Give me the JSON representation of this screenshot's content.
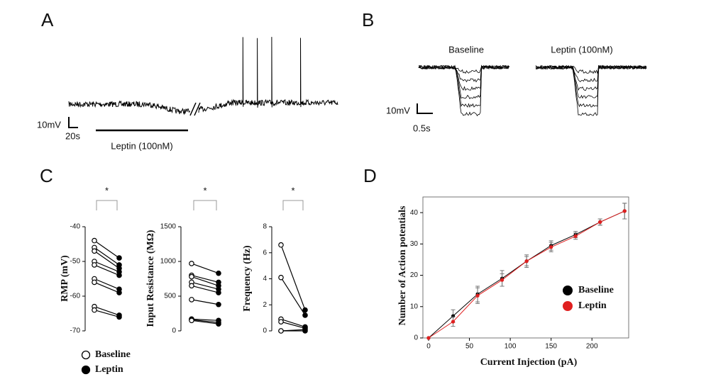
{
  "panels": {
    "A": {
      "label": "A",
      "scale_y": "10mV",
      "scale_x": "20s",
      "bar_label": "Leptin (100nM)"
    },
    "B": {
      "label": "B",
      "baseline": "Baseline",
      "leptin": "Leptin (100nM)",
      "scale_y": "10mV",
      "scale_x": "0.5s"
    },
    "C": {
      "label": "C"
    },
    "D": {
      "label": "D"
    }
  },
  "chart_data": [
    {
      "type": "paired",
      "ylabel": "RMP (mV)",
      "significance": "*",
      "ylim": [
        -70,
        -40
      ],
      "yticks": [
        -70,
        -60,
        -50,
        -40
      ],
      "series": [
        {
          "name": "Baseline",
          "color": "#ffffff",
          "values": [
            -44,
            -46,
            -47,
            -50,
            -51,
            -55,
            -56,
            -63,
            -64
          ]
        },
        {
          "name": "Leptin",
          "color": "#000000",
          "values": [
            -49,
            -51,
            -52,
            -53,
            -54,
            -58,
            -59,
            -65.5,
            -66
          ]
        }
      ]
    },
    {
      "type": "paired",
      "ylabel": "Input Resistance (MΩ)",
      "significance": "*",
      "ylim": [
        0,
        1500
      ],
      "yticks": [
        0,
        500,
        1000,
        1500
      ],
      "series": [
        {
          "name": "Baseline",
          "color": "#ffffff",
          "values": [
            970,
            800,
            780,
            700,
            650,
            450,
            170,
            160,
            150
          ]
        },
        {
          "name": "Leptin",
          "color": "#000000",
          "values": [
            830,
            700,
            650,
            600,
            550,
            380,
            150,
            120,
            100
          ]
        }
      ]
    },
    {
      "type": "paired",
      "ylabel": "Frequency (Hz)",
      "significance": "*",
      "ylim": [
        0,
        8
      ],
      "yticks": [
        0,
        2,
        4,
        6,
        8
      ],
      "series": [
        {
          "name": "Baseline",
          "color": "#ffffff",
          "values": [
            6.6,
            4.1,
            0.9,
            0.7,
            0,
            0
          ]
        },
        {
          "name": "Leptin",
          "color": "#000000",
          "values": [
            1.6,
            1.2,
            0.3,
            0.2,
            0.1,
            0
          ]
        }
      ]
    },
    {
      "type": "line",
      "xlabel": "Current Injection (pA)",
      "ylabel": "Number of Action potentials",
      "x": [
        0,
        30,
        60,
        90,
        120,
        150,
        180,
        210,
        240
      ],
      "xlim": [
        0,
        245
      ],
      "xticks": [
        0,
        50,
        100,
        150,
        200
      ],
      "ylim": [
        0,
        45
      ],
      "yticks": [
        0,
        10,
        20,
        30,
        40
      ],
      "series": [
        {
          "name": "Baseline",
          "color": "#000000",
          "values": [
            0,
            7,
            14,
            19,
            24.5,
            29.5,
            33,
            37,
            40.5
          ],
          "errors": [
            0,
            2,
            2.5,
            2.5,
            2,
            1.5,
            1,
            1,
            2.5
          ]
        },
        {
          "name": "Leptin",
          "color": "#e02020",
          "values": [
            0,
            5.2,
            13.5,
            18.5,
            24.5,
            29,
            32.5,
            37,
            40.5
          ],
          "errors": [
            0,
            1.5,
            2.5,
            2,
            1.5,
            1.5,
            1,
            1,
            2.5
          ]
        }
      ]
    }
  ]
}
